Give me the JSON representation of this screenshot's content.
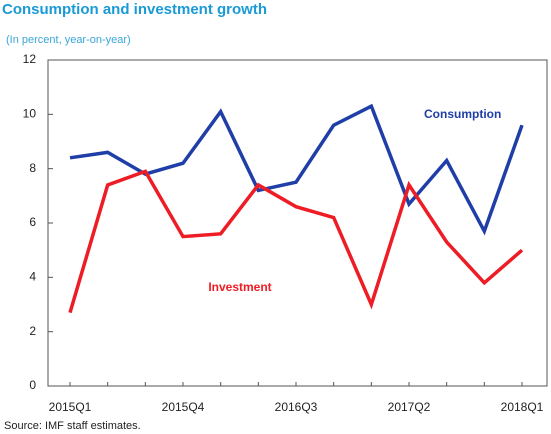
{
  "chart_data": {
    "type": "line",
    "title": "Consumption and investment growth",
    "subtitle": "(In percent, year-on-year)",
    "source": "Source: IMF staff estimates.",
    "categories": [
      "2015Q1",
      null,
      null,
      "2015Q4",
      null,
      null,
      "2016Q3",
      null,
      null,
      "2017Q2",
      null,
      null,
      "2018Q1"
    ],
    "series": [
      {
        "name": "Consumption",
        "color": "#1f3ea8",
        "values": [
          8.4,
          8.6,
          7.8,
          8.2,
          10.1,
          7.2,
          7.5,
          9.6,
          10.3,
          6.7,
          8.3,
          5.7,
          9.6
        ]
      },
      {
        "name": "Investment",
        "color": "#ee1c25",
        "values": [
          2.7,
          7.4,
          7.9,
          5.5,
          5.6,
          7.4,
          6.6,
          6.2,
          3.0,
          7.4,
          5.3,
          3.8,
          5.0
        ]
      }
    ],
    "ylim": [
      0,
      12
    ],
    "yticks": [
      0,
      2,
      4,
      6,
      8,
      10,
      12
    ],
    "grid": false
  }
}
